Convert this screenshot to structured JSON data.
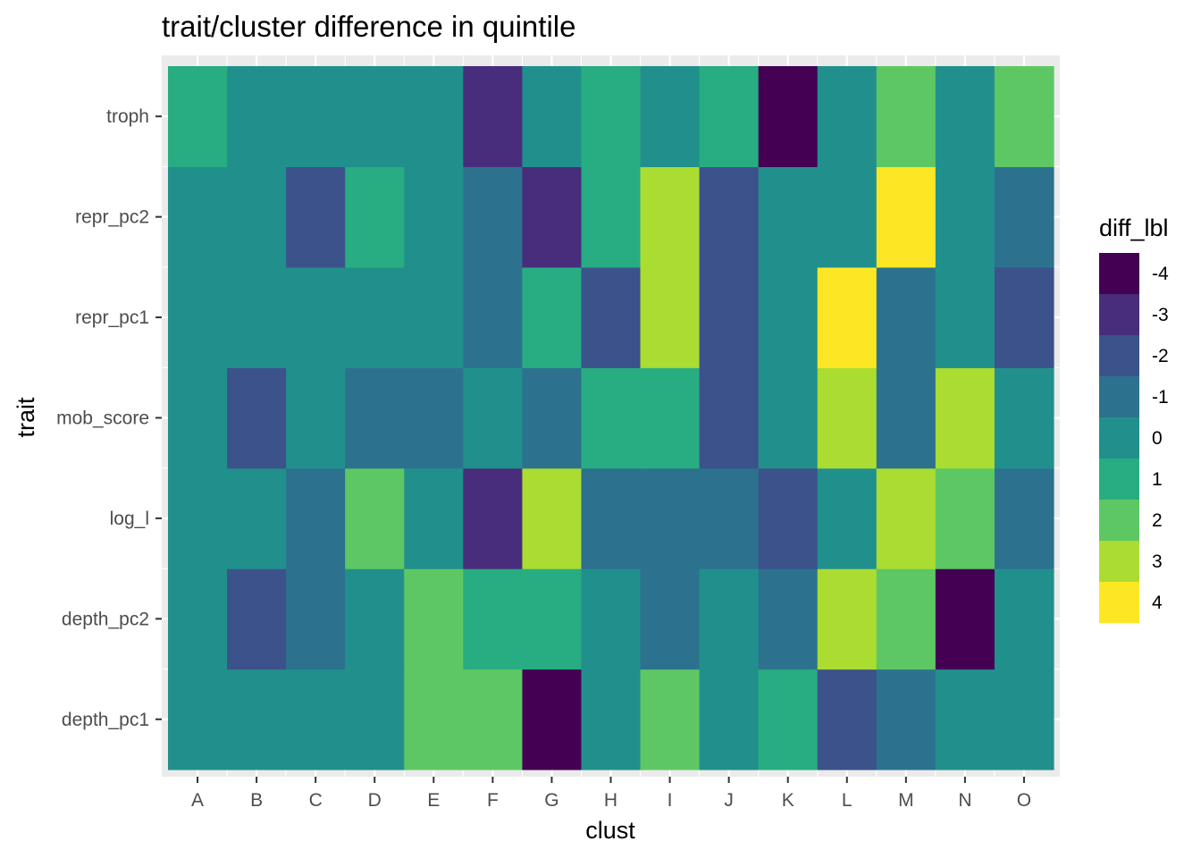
{
  "chart_data": {
    "type": "heatmap",
    "title": "trait/cluster difference in quintile",
    "xlabel": "clust",
    "ylabel": "trait",
    "x_categories": [
      "A",
      "B",
      "C",
      "D",
      "E",
      "F",
      "G",
      "H",
      "I",
      "J",
      "K",
      "L",
      "M",
      "N",
      "O"
    ],
    "y_categories": [
      "depth_pc1",
      "depth_pc2",
      "log_l",
      "mob_score",
      "repr_pc1",
      "repr_pc2",
      "troph"
    ],
    "values": {
      "troph": [
        1,
        0,
        0,
        0,
        0,
        -3,
        0,
        1,
        0,
        1,
        -4,
        0,
        2,
        0,
        2
      ],
      "repr_pc2": [
        0,
        0,
        -2,
        1,
        0,
        -1,
        -3,
        1,
        3,
        -2,
        0,
        0,
        4,
        0,
        -1
      ],
      "repr_pc1": [
        0,
        0,
        0,
        0,
        0,
        -1,
        1,
        -2,
        3,
        -2,
        0,
        4,
        -1,
        0,
        -2
      ],
      "mob_score": [
        0,
        -2,
        0,
        -1,
        -1,
        0,
        -1,
        1,
        1,
        -2,
        0,
        3,
        -1,
        3,
        0
      ],
      "log_l": [
        0,
        0,
        -1,
        2,
        0,
        -3,
        3,
        -1,
        -1,
        -1,
        -2,
        0,
        3,
        2,
        -1
      ],
      "depth_pc2": [
        0,
        -2,
        -1,
        0,
        2,
        1,
        1,
        0,
        -1,
        0,
        -1,
        3,
        2,
        -4,
        0
      ],
      "depth_pc1": [
        0,
        0,
        0,
        0,
        2,
        2,
        -4,
        0,
        2,
        0,
        1,
        -2,
        -1,
        0,
        0
      ]
    },
    "legend": {
      "title": "diff_lbl",
      "placement": "right",
      "levels": [
        "-4",
        "-3",
        "-2",
        "-1",
        "0",
        "1",
        "2",
        "3",
        "4"
      ],
      "colors": [
        "#440154",
        "#472d7b",
        "#3b528b",
        "#2c728e",
        "#21908c",
        "#27ad81",
        "#5dc863",
        "#aadc32",
        "#fde725"
      ]
    },
    "background": "#ebebeb",
    "grid": true
  }
}
